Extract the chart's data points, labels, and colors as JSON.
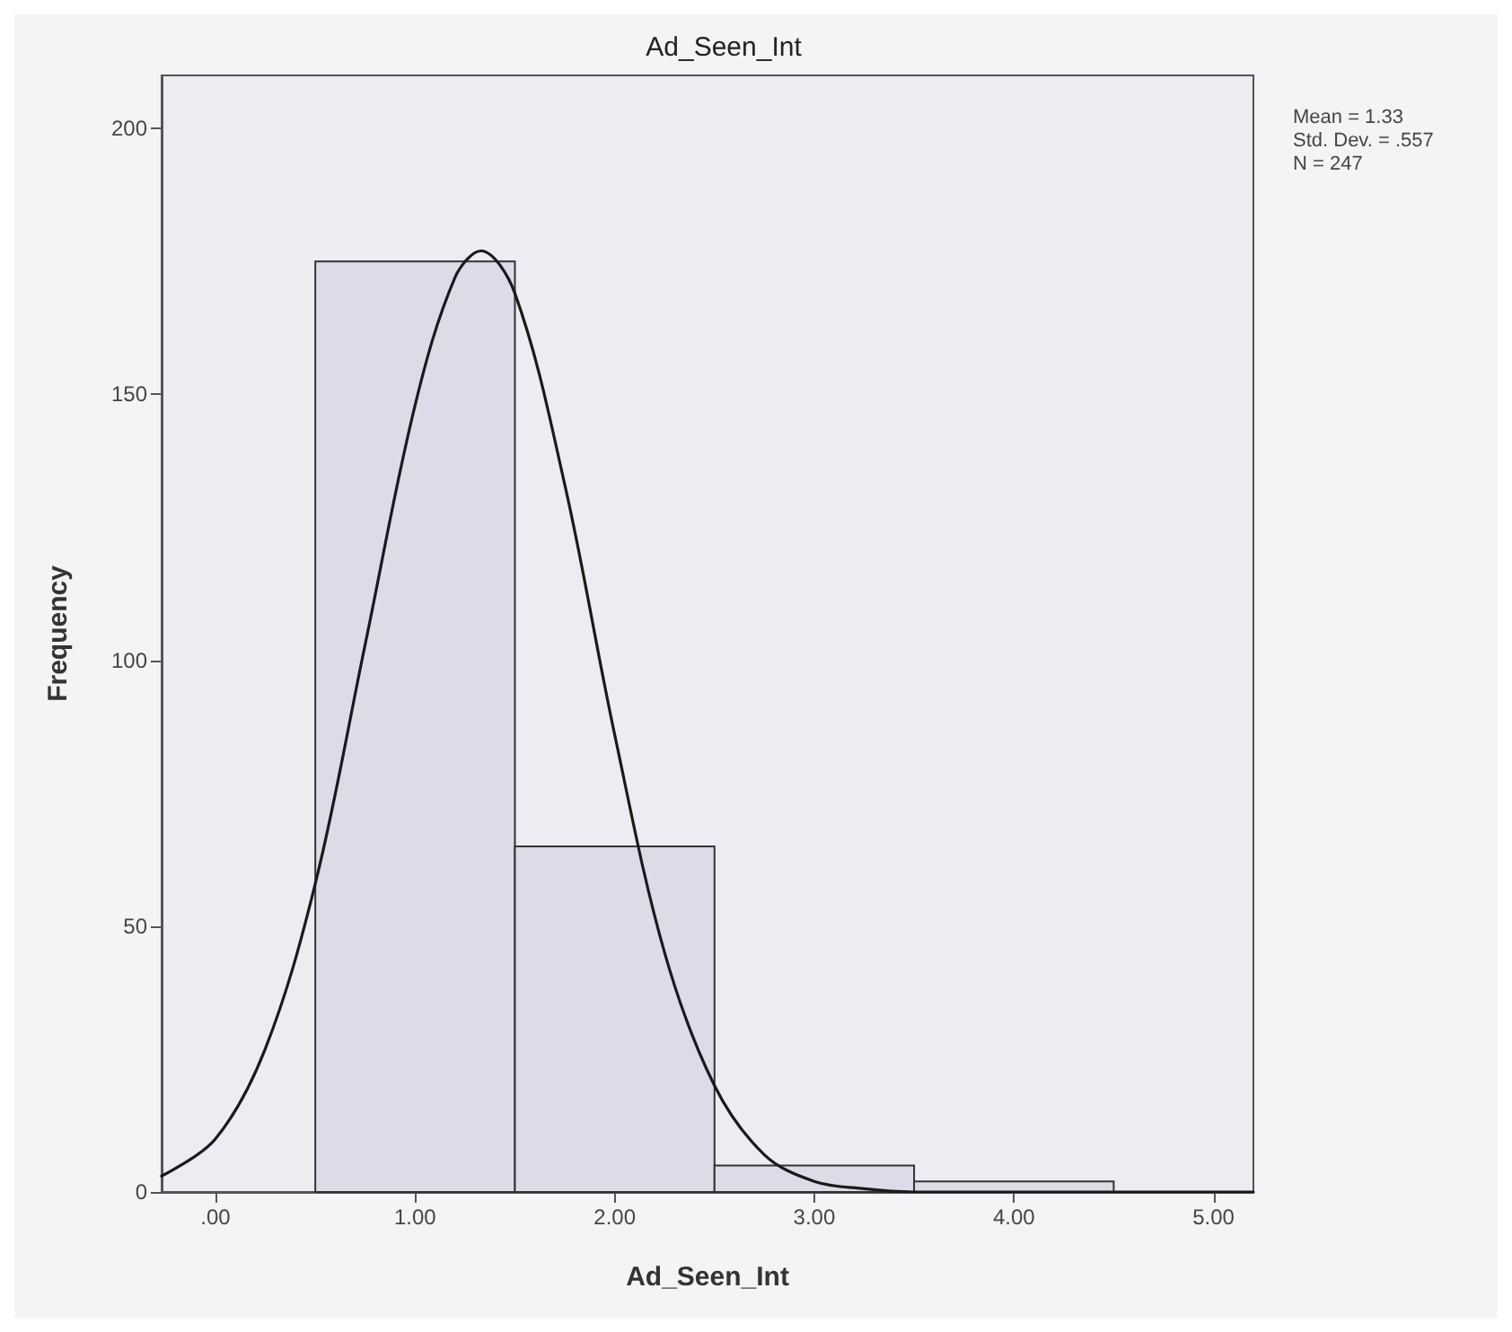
{
  "chart_data": {
    "type": "histogram",
    "title": "Ad_Seen_Int",
    "xlabel": "Ad_Seen_Int",
    "ylabel": "Frequency",
    "annotations": [
      "Mean = 1.33",
      "Std. Dev. = .557",
      "N = 247"
    ],
    "bins": [
      0.5,
      1.5,
      2.5,
      3.5,
      4.5
    ],
    "series": [
      {
        "color": "#dcdce8",
        "values": [
          175,
          65,
          5,
          2
        ]
      },
      {
        "type": "line",
        "color": "#1a1a1a",
        "x": [
          -0.27,
          0,
          0.25,
          0.5,
          0.75,
          1,
          1.2,
          1.33,
          1.5,
          1.75,
          2,
          2.25,
          2.5,
          2.75,
          3,
          3.25,
          3.5,
          4,
          5.2
        ],
        "values": [
          3,
          10,
          27,
          58,
          103,
          148,
          172,
          177,
          169,
          133,
          86,
          45,
          20,
          7,
          2,
          0.6,
          0,
          0,
          0
        ]
      }
    ],
    "xlim": [
      -0.27,
      5.2
    ],
    "xticks": [
      {
        "value": 0,
        "label": ".00"
      },
      {
        "value": 1,
        "label": "1.00"
      },
      {
        "value": 2,
        "label": "2.00"
      },
      {
        "value": 3,
        "label": "3.00"
      },
      {
        "value": 4,
        "label": "4.00"
      },
      {
        "value": 5,
        "label": "5.00"
      }
    ],
    "ylim": [
      0,
      210
    ],
    "yticks": [
      0,
      50,
      100,
      150,
      200
    ],
    "grid": false,
    "line_style": "solid",
    "marker": "none"
  }
}
